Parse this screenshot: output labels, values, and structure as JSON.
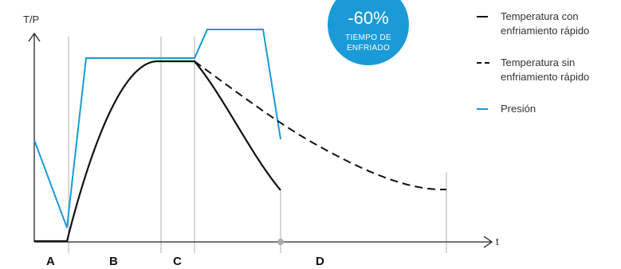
{
  "axes": {
    "y_label": "T/P",
    "x_label": "t"
  },
  "phases": [
    "A",
    "B",
    "C",
    "D"
  ],
  "badge": {
    "percent": "-60%",
    "line1": "TIEMPO DE",
    "line2": "ENFRIADO",
    "color": "#1a9ad6"
  },
  "legend": [
    {
      "line1": "Temperatura con",
      "line2": "enfriamiento rápido",
      "style": "solid",
      "color": "#111111"
    },
    {
      "line1": "Temperatura sin",
      "line2": "enfriamiento rápido",
      "style": "dashed",
      "color": "#111111"
    },
    {
      "line1": "Presión",
      "line2": "",
      "style": "solid",
      "color": "#1a9ad6"
    }
  ]
}
